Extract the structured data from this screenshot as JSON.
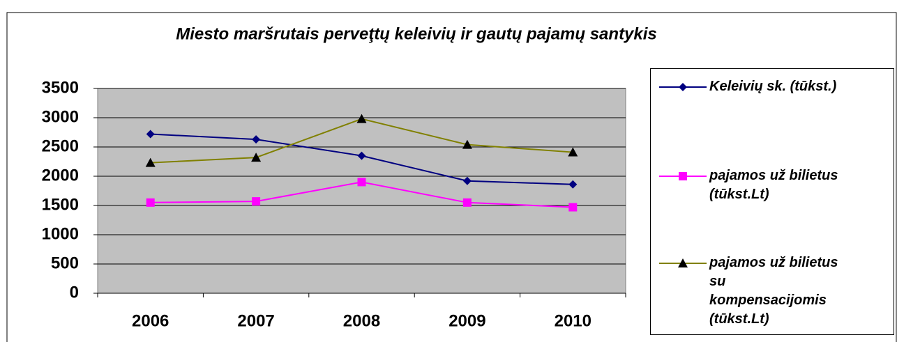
{
  "chart_data": {
    "type": "line",
    "title": "Miesto maršrutais perveţtų keleivių ir gautų pajamų santykis",
    "categories": [
      "2006",
      "2007",
      "2008",
      "2009",
      "2010"
    ],
    "series": [
      {
        "name": "Keleivių sk. (tūkst.)",
        "color": "#000080",
        "marker": "diamond",
        "marker_color": "#000080",
        "values": [
          2720,
          2630,
          2350,
          1920,
          1860
        ]
      },
      {
        "name": "pajamos už bilietus (tūkst.Lt)",
        "color": "#ff00ff",
        "marker": "square",
        "marker_color": "#ff00ff",
        "values": [
          1550,
          1570,
          1900,
          1550,
          1470
        ]
      },
      {
        "name": "pajamos už bilietus su kompensacijomis (tūkst.Lt)",
        "color": "#808000",
        "marker": "triangle",
        "marker_color": "#000000",
        "values": [
          2230,
          2320,
          2980,
          2540,
          2410
        ]
      }
    ],
    "ylim": [
      0,
      3500
    ],
    "yticks": [
      0,
      500,
      1000,
      1500,
      2000,
      2500,
      3000,
      3500
    ],
    "grid": true,
    "legend": "right"
  }
}
